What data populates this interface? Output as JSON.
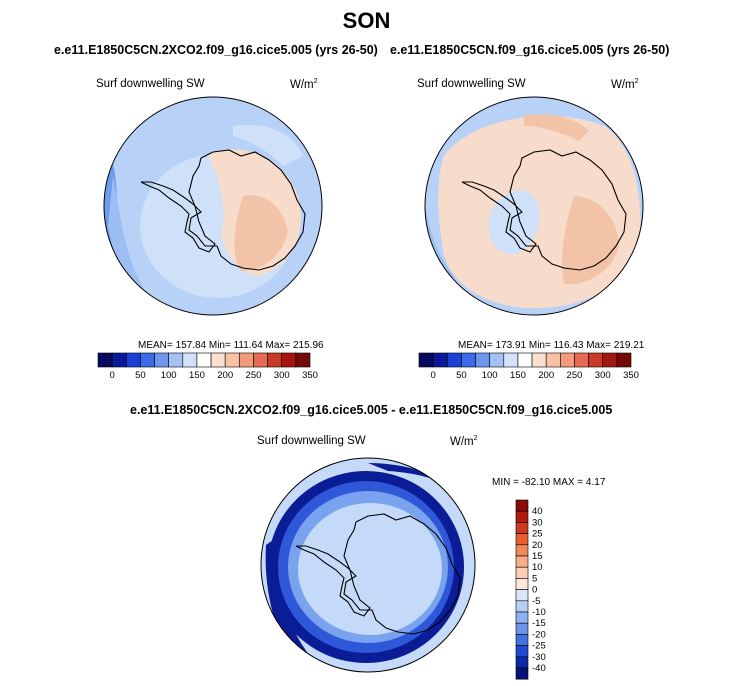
{
  "season": "SON",
  "panels": [
    {
      "case": "e.e11.E1850C5CN.2XCO2.f09_g16.cice5.005 (yrs 26-50)",
      "variable": "Surf downwelling SW",
      "units": "W/m",
      "units_sup": "2",
      "stats": "MEAN= 157.84   Min= 111.64   Max= 215.96"
    },
    {
      "case": "e.e11.E1850C5CN.f09_g16.cice5.005 (yrs 26-50)",
      "variable": "Surf downwelling SW",
      "units": "W/m",
      "units_sup": "2",
      "stats": "MEAN= 173.91   Min= 116.43   Max= 219.21"
    }
  ],
  "diff_panel": {
    "case": "e.e11.E1850C5CN.2XCO2.f09_g16.cice5.005 - e.e11.E1850C5CN.f09_g16.cice5.005",
    "variable": "Surf downwelling SW",
    "units": "W/m",
    "units_sup": "2",
    "stats": "MIN = -82.10  MAX =   4.17"
  },
  "abs_colorbar": {
    "labels": [
      "0",
      "50",
      "100",
      "150",
      "200",
      "250",
      "300",
      "350"
    ],
    "colors": [
      "#08085e",
      "#0a1a9a",
      "#1c3fd6",
      "#3b6de6",
      "#6e98ef",
      "#a4c2f5",
      "#d2e3f9",
      "#ffffff",
      "#fbe0d0",
      "#f8c2a7",
      "#f29c7c",
      "#e56a4f",
      "#c93b26",
      "#a41612",
      "#740a08"
    ]
  },
  "diff_colorbar": {
    "labels": [
      "40",
      "30",
      "25",
      "20",
      "15",
      "10",
      "5",
      "0",
      "-5",
      "-10",
      "-15",
      "-20",
      "-25",
      "-30",
      "-40"
    ],
    "colors": [
      "#8a0c08",
      "#b01a0f",
      "#cf3a1f",
      "#e9602f",
      "#f2895c",
      "#f7ad88",
      "#fbcdb3",
      "#fde8da",
      "#dbe8fb",
      "#b6cff6",
      "#8eb2f0",
      "#6a93e9",
      "#4471df",
      "#1f49cf",
      "#0c2aa6",
      "#06127a"
    ]
  },
  "map_colors": {
    "ocean_base": "#b7d1f7",
    "ocean_mid": "#9cbef3",
    "ocean_low": "#6f9ceb",
    "land_light": "#f8dccb",
    "land_mid": "#f3c3a8",
    "ice_light": "#cfe0f9",
    "diff_base": "#c5daf8",
    "diff_ring_dark": "#0a1d96",
    "diff_ring_mid": "#2e58d8",
    "diff_ring_light": "#7aa3ef"
  }
}
